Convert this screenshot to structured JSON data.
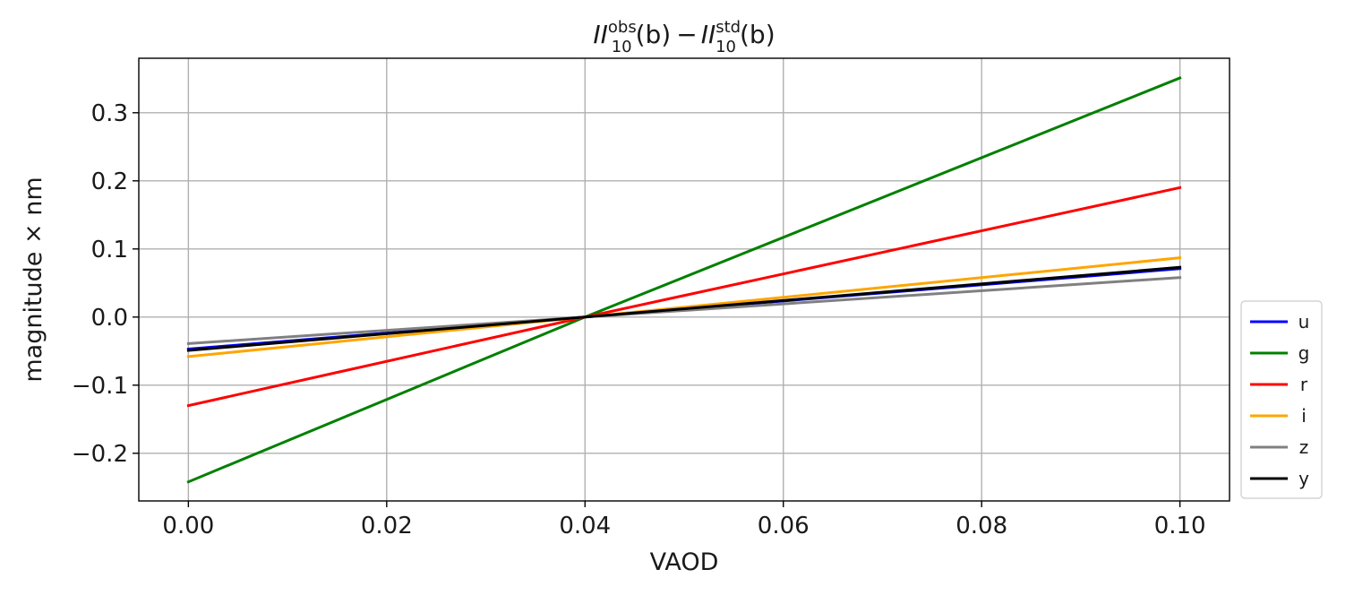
{
  "chart_data": {
    "type": "line",
    "title": {
      "term1_main": "II",
      "term1_sup": "obs",
      "term1_sub": "10",
      "term1_arg": "(b)",
      "operator": "−",
      "term2_main": "II",
      "term2_sup": "std",
      "term2_sub": "10",
      "term2_arg": "(b)"
    },
    "xlabel": "VAOD",
    "ylabel": "magnitude × nm",
    "xlim": [
      -0.005,
      0.105
    ],
    "ylim": [
      -0.27,
      0.38
    ],
    "xticks": [
      0.0,
      0.02,
      0.04,
      0.06,
      0.08,
      0.1
    ],
    "xtick_labels": [
      "0.00",
      "0.02",
      "0.04",
      "0.06",
      "0.08",
      "0.10"
    ],
    "yticks": [
      -0.2,
      -0.1,
      0.0,
      0.1,
      0.2,
      0.3
    ],
    "ytick_labels": [
      "−0.2",
      "−0.1",
      "0.0",
      "0.1",
      "0.2",
      "0.3"
    ],
    "grid": true,
    "legend_position": "outside-lower-right",
    "series": [
      {
        "name": "u",
        "color": "#0000ff",
        "x": [
          0.0,
          0.04,
          0.1
        ],
        "y": [
          -0.047,
          0.0,
          0.071
        ]
      },
      {
        "name": "g",
        "color": "#008000",
        "x": [
          0.0,
          0.04,
          0.1
        ],
        "y": [
          -0.242,
          0.0,
          0.351
        ]
      },
      {
        "name": "r",
        "color": "#ff0000",
        "x": [
          0.0,
          0.04,
          0.1
        ],
        "y": [
          -0.13,
          0.0,
          0.19
        ]
      },
      {
        "name": "i",
        "color": "#ffa500",
        "x": [
          0.0,
          0.04,
          0.1
        ],
        "y": [
          -0.058,
          0.0,
          0.087
        ]
      },
      {
        "name": "z",
        "color": "#808080",
        "x": [
          0.0,
          0.04,
          0.1
        ],
        "y": [
          -0.039,
          0.0,
          0.058
        ]
      },
      {
        "name": "y",
        "color": "#000000",
        "x": [
          0.0,
          0.04,
          0.1
        ],
        "y": [
          -0.049,
          0.0,
          0.073
        ]
      }
    ]
  }
}
